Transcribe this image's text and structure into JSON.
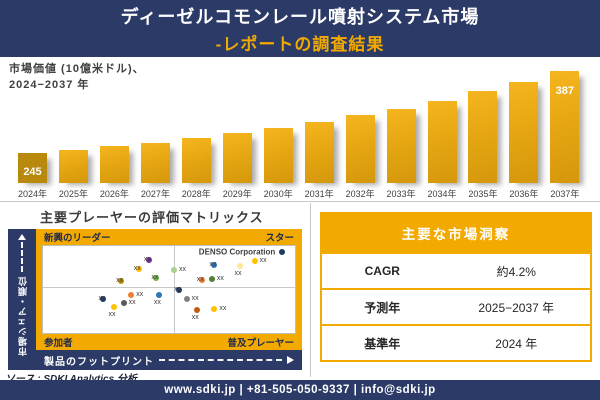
{
  "colors": {
    "navy": "#2B3A67",
    "gold": "#F2A900",
    "bar_gold": "#E3A411",
    "bar_first": "#B8890D",
    "divider_gray": "#C8C8C8",
    "text_dark": "#3F3F3F"
  },
  "header": {
    "title_line1": "ディーゼルコモンレール噴射システム市場",
    "title_line2": "-レポートの調査結果"
  },
  "chart_section": {
    "label_line1": "市場価値 (10億米ドル)、",
    "label_line2": "2024−2037 年"
  },
  "chart_data": [
    {
      "type": "bar",
      "title": "市場価値 (10億米ドル)、2024−2037 年",
      "ylabel": "市場価値 (10億米ドル)",
      "categories": [
        "2024年",
        "2025年",
        "2026年",
        "2027年",
        "2028年",
        "2029年",
        "2030年",
        "2031年",
        "2032年",
        "2033年",
        "2034年",
        "2035年",
        "2036年",
        "2037年"
      ],
      "values": [
        245,
        254,
        263,
        272,
        282,
        292,
        303,
        313,
        325,
        336,
        348,
        361,
        374,
        387
      ],
      "labeled_values": {
        "2024年": 245,
        "2037年": 387
      },
      "grid": false,
      "legend": false
    },
    {
      "type": "scatter",
      "title": "主要プレーヤーの評価マトリックス",
      "xlabel": "製品のフットプリント",
      "ylabel": "市場シェア・順位",
      "quadrants": {
        "top_left": "新興のリーダー",
        "top_right": "スター",
        "bottom_left": "参加者",
        "bottom_right": "普及プレーヤー"
      },
      "annotation": {
        "text": "DENSO Corporation",
        "x": 77,
        "y": 7
      },
      "point_label": "xx",
      "points": [
        {
          "x": 42,
          "y": 16,
          "color": "#7030A0",
          "lp": "l"
        },
        {
          "x": 38,
          "y": 27,
          "color": "#FFC000",
          "lp": "l"
        },
        {
          "x": 31,
          "y": 40,
          "color": "#BF8F00",
          "lp": "l"
        },
        {
          "x": 45,
          "y": 37,
          "color": "#70AD47",
          "lp": "l"
        },
        {
          "x": 95,
          "y": 7,
          "color": "#1F3864",
          "lp": "none"
        },
        {
          "x": 84,
          "y": 17,
          "color": "#FFC000",
          "lp": "r"
        },
        {
          "x": 78,
          "y": 23,
          "color": "#FFE699",
          "lp": "b"
        },
        {
          "x": 68,
          "y": 22,
          "color": "#2E75B6",
          "lp": "l"
        },
        {
          "x": 52,
          "y": 28,
          "color": "#A9D18E",
          "lp": "r"
        },
        {
          "x": 63,
          "y": 39,
          "color": "#ED7D31",
          "lp": "l"
        },
        {
          "x": 67,
          "y": 38,
          "color": "#548235",
          "lp": "r"
        },
        {
          "x": 35,
          "y": 56,
          "color": "#ED7D31",
          "lp": "r"
        },
        {
          "x": 24,
          "y": 61,
          "color": "#203864",
          "lp": "l"
        },
        {
          "x": 46,
          "y": 56,
          "color": "#2E75B6",
          "lp": "b"
        },
        {
          "x": 28,
          "y": 70,
          "color": "#FFC000",
          "lp": "b"
        },
        {
          "x": 32,
          "y": 66,
          "color": "#595959",
          "lp": "r"
        },
        {
          "x": 54,
          "y": 51,
          "color": "#1F3864",
          "lp": "l"
        },
        {
          "x": 57,
          "y": 61,
          "color": "#808080",
          "lp": "r"
        },
        {
          "x": 61,
          "y": 74,
          "color": "#C55A11",
          "lp": "b"
        },
        {
          "x": 68,
          "y": 72,
          "color": "#FFC000",
          "lp": "r"
        }
      ]
    }
  ],
  "matrix": {
    "title": "主要プレーヤーの評価マトリックス",
    "source": "ソース : SDKI Analytics 分析"
  },
  "insights": {
    "header": "主要な市場洞察",
    "rows": [
      {
        "label": "CAGR",
        "value": "約4.2%"
      },
      {
        "label": "予測年",
        "value": "2025−2037 年"
      },
      {
        "label": "基準年",
        "value": "2024 年"
      }
    ]
  },
  "footer": {
    "text": "www.sdki.jp | +81-505-050-9337 | info@sdki.jp"
  }
}
